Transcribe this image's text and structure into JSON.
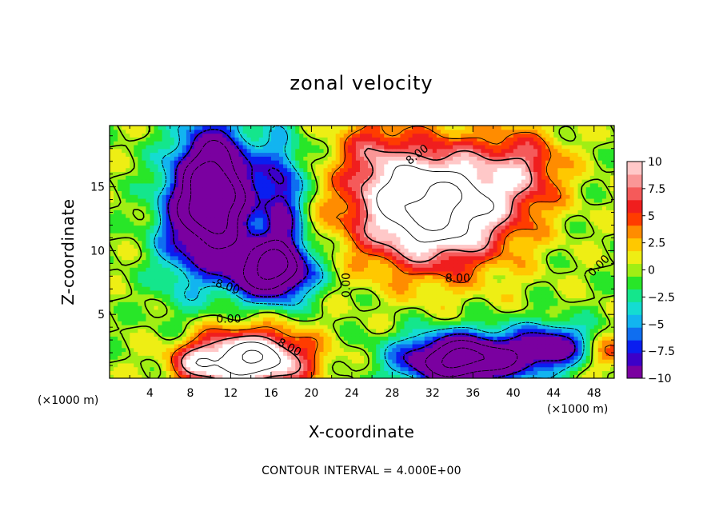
{
  "chart_data": {
    "type": "heatmap",
    "title": "zonal velocity",
    "xlabel": "X-coordinate",
    "ylabel": "Z-coordinate",
    "x_units": "(×1000 m)",
    "xlim": [
      0,
      50
    ],
    "ylim": [
      0,
      19.8
    ],
    "x_ticks": [
      4,
      8,
      12,
      16,
      20,
      24,
      28,
      32,
      36,
      40,
      44,
      48
    ],
    "y_ticks": [
      5,
      10,
      15
    ],
    "footer": "CONTOUR INTERVAL = 4.000E+00",
    "colorbar": {
      "range": [
        -10,
        10
      ],
      "ticks": [
        {
          "value": 10,
          "label": "10"
        },
        {
          "value": 7.5,
          "label": "7.5"
        },
        {
          "value": 5,
          "label": "5"
        },
        {
          "value": 2.5,
          "label": "2.5"
        },
        {
          "value": 0,
          "label": "0"
        },
        {
          "value": -2.5,
          "label": "−2.5"
        },
        {
          "value": -5,
          "label": "−5"
        },
        {
          "value": -7.5,
          "label": "−7.5"
        },
        {
          "value": -10,
          "label": "−10"
        }
      ],
      "colors": [
        "#7a00a0",
        "#3c00c8",
        "#0a1ef0",
        "#0f6ef0",
        "#12b4f0",
        "#14dcd2",
        "#14e68c",
        "#28e628",
        "#a0ee14",
        "#eeee14",
        "#ffc800",
        "#ff8c00",
        "#ff3c00",
        "#f01e1e",
        "#f55a5a",
        "#fa9696",
        "#ffc8c8"
      ]
    },
    "contour_labels": [
      {
        "text": "8.00",
        "x": 30.5,
        "y": 17.5,
        "angle": -38
      },
      {
        "text": "8.00",
        "x": 34.5,
        "y": 7.8,
        "angle": 0
      },
      {
        "text": "0.00",
        "x": 48.5,
        "y": 8.8,
        "angle": -45
      },
      {
        "text": "-8.00",
        "x": 11.5,
        "y": 7.2,
        "angle": 18
      },
      {
        "text": "0.00",
        "x": 23.5,
        "y": 7.3,
        "angle": -90
      },
      {
        "text": "0.00",
        "x": 11.8,
        "y": 4.6,
        "angle": 0
      },
      {
        "text": "8.00",
        "x": 17.8,
        "y": 2.4,
        "angle": 28
      }
    ],
    "features": [
      {
        "x": 32,
        "y": 13.5,
        "amp": 18,
        "sx": 7.5,
        "sy": 4.5
      },
      {
        "x": 41,
        "y": 16.5,
        "amp": 6,
        "sx": 4,
        "sy": 3
      },
      {
        "x": 14,
        "y": 1.5,
        "amp": 16,
        "sx": 5.5,
        "sy": 2.2
      },
      {
        "x": 8.5,
        "y": 1.2,
        "amp": 5,
        "sx": 2.5,
        "sy": 1.5
      },
      {
        "x": 10.5,
        "y": 14.5,
        "amp": -20,
        "sx": 3.5,
        "sy": 5
      },
      {
        "x": 16,
        "y": 8.5,
        "amp": -16,
        "sx": 4,
        "sy": 2.3
      },
      {
        "x": 17,
        "y": 14,
        "amp": -9,
        "sx": 2.2,
        "sy": 5
      },
      {
        "x": 35,
        "y": 1.5,
        "amp": -18,
        "sx": 6,
        "sy": 2
      },
      {
        "x": 44,
        "y": 2.5,
        "amp": -10,
        "sx": 4,
        "sy": 1.8
      },
      {
        "x": 7,
        "y": 12,
        "amp": -5,
        "sx": 3,
        "sy": 6
      },
      {
        "x": 49.5,
        "y": 2,
        "amp": 5,
        "sx": 3,
        "sy": 1.5
      },
      {
        "x": 26,
        "y": 18,
        "amp": 4,
        "sx": 3,
        "sy": 3
      }
    ]
  }
}
